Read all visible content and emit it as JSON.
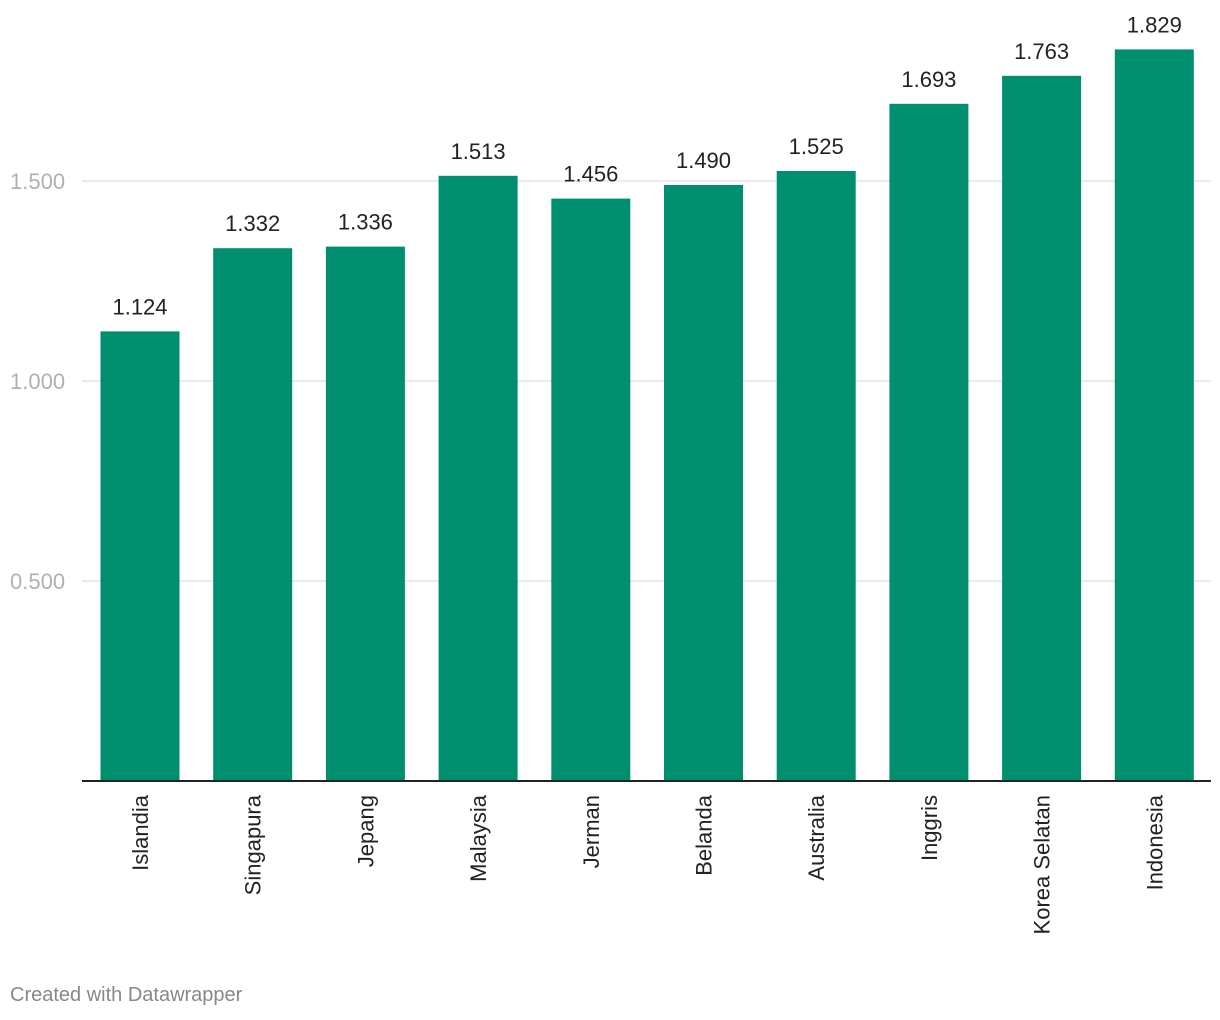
{
  "chart_data": {
    "type": "bar",
    "categories": [
      "Islandia",
      "Singapura",
      "Jepang",
      "Malaysia",
      "Jerman",
      "Belanda",
      "Australia",
      "Inggris",
      "Korea Selatan",
      "Indonesia"
    ],
    "values": [
      1.124,
      1.332,
      1.336,
      1.513,
      1.456,
      1.49,
      1.525,
      1.693,
      1.763,
      1.829
    ],
    "value_labels": [
      "1.124",
      "1.332",
      "1.336",
      "1.513",
      "1.456",
      "1.490",
      "1.525",
      "1.693",
      "1.763",
      "1.829"
    ],
    "y_ticks": [
      0.5,
      1.0,
      1.5
    ],
    "y_tick_labels": [
      "0.500",
      "1.000",
      "1.500"
    ],
    "ylim": [
      0,
      1.95
    ],
    "title": "",
    "xlabel": "",
    "ylabel": "",
    "grid": true,
    "bar_color": "#008f6e",
    "gridline_color": "#e3e3e3",
    "axis_tick_color": "#b0b0b0"
  },
  "footer": {
    "credit": "Created with Datawrapper"
  }
}
